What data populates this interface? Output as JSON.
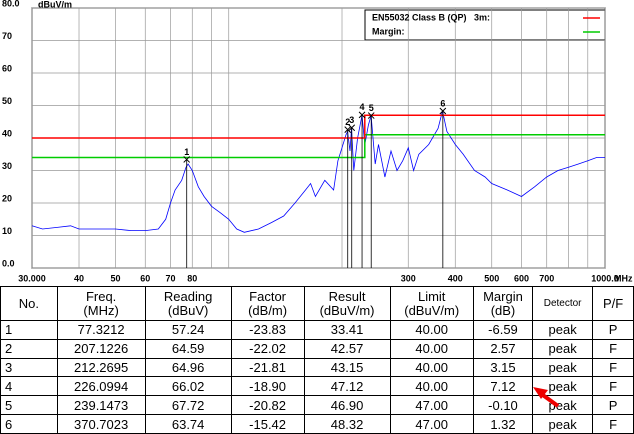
{
  "chart_data": {
    "type": "line",
    "ylabel": "dBuV/m",
    "xlabel": "MHz",
    "xlog": true,
    "grid": true,
    "xlim": [
      30,
      1000
    ],
    "ylim": [
      0,
      80
    ],
    "yticks": [
      {
        "value": 0,
        "label": "0.0"
      },
      10,
      20,
      30,
      40,
      50,
      60,
      70,
      {
        "value": 80,
        "label": "80.0"
      }
    ],
    "xticks": [
      {
        "value": 30,
        "label": "30.000"
      },
      {
        "value": 40,
        "label": "40"
      },
      {
        "value": 50,
        "label": "50"
      },
      {
        "value": 60,
        "label": "60"
      },
      {
        "value": 70,
        "label": "70"
      },
      {
        "value": 80,
        "label": "80"
      },
      {
        "value": 90,
        "label": null
      },
      {
        "value": 100,
        "label": null
      },
      {
        "value": 200,
        "label": null
      },
      {
        "value": 300,
        "label": "300"
      },
      {
        "value": 400,
        "label": "400"
      },
      {
        "value": 500,
        "label": "500"
      },
      {
        "value": 600,
        "label": "600"
      },
      {
        "value": 700,
        "label": "700"
      },
      {
        "value": 800,
        "label": null
      },
      {
        "value": 900,
        "label": null
      },
      {
        "value": 1000,
        "label": "1000.0"
      }
    ],
    "series": [
      {
        "name": "EN55032 Class B (QP)   3m:",
        "color": "#ff0000",
        "x": [
          30,
          230,
          230,
          1000
        ],
        "values": [
          40,
          40,
          47,
          47
        ]
      },
      {
        "name": "Margin:",
        "color": "#00cc00",
        "x": [
          30,
          230,
          230,
          1000
        ],
        "values": [
          34,
          34,
          41,
          41
        ]
      },
      {
        "color": "#0000ff",
        "x": [
          30,
          32,
          35,
          38,
          40,
          45,
          50,
          55,
          60,
          65,
          68,
          70,
          72,
          75,
          77,
          78,
          80,
          83,
          86,
          90,
          95,
          100,
          105,
          110,
          120,
          130,
          140,
          150,
          160,
          165,
          170,
          180,
          190,
          195,
          200,
          205,
          207,
          210,
          212,
          215,
          220,
          226,
          230,
          235,
          239,
          245,
          250,
          260,
          270,
          280,
          290,
          300,
          310,
          320,
          340,
          360,
          370,
          380,
          400,
          420,
          450,
          480,
          500,
          550,
          600,
          650,
          700,
          750,
          800,
          850,
          900,
          950,
          1000
        ],
        "values": [
          13,
          12,
          12.5,
          13,
          12,
          12,
          12,
          11.5,
          11.5,
          12,
          15,
          20,
          24,
          27,
          31,
          32,
          30,
          25,
          22,
          19,
          17,
          15,
          12,
          11,
          12,
          14,
          16,
          20,
          24,
          26,
          22,
          27,
          24,
          33,
          37,
          41,
          42,
          36,
          43,
          30,
          40,
          47,
          38,
          44,
          46.9,
          32,
          38,
          28,
          36,
          30,
          33,
          37,
          30,
          35,
          38,
          43,
          48.3,
          42,
          38,
          35,
          30,
          28,
          26,
          24,
          22,
          25,
          28,
          30,
          31,
          32,
          33,
          34,
          34
        ]
      }
    ],
    "markers": {
      "labels": [
        "1",
        "2",
        "3",
        "4",
        "5",
        "6"
      ],
      "x": [
        77.3212,
        207.1226,
        212.2695,
        226.0994,
        239.1473,
        370.7023
      ],
      "values": [
        33.41,
        42.57,
        43.15,
        47.12,
        46.9,
        48.32
      ]
    }
  },
  "table": {
    "header": [
      "No.",
      "Freq.\n(MHz)",
      "Reading\n(dBuV)",
      "Factor\n(dB/m)",
      "Result\n(dBuV/m)",
      "Limit\n(dBuV/m)",
      "Margin\n(dB)",
      "Detector",
      "P/F"
    ],
    "rows": [
      [
        "1",
        "77.3212",
        "57.24",
        "-23.83",
        "33.41",
        "40.00",
        "-6.59",
        "peak",
        "P"
      ],
      [
        "2",
        "207.1226",
        "64.59",
        "-22.02",
        "42.57",
        "40.00",
        "2.57",
        "peak",
        "F"
      ],
      [
        "3",
        "212.2695",
        "64.96",
        "-21.81",
        "43.15",
        "40.00",
        "3.15",
        "peak",
        "F"
      ],
      [
        "4",
        "226.0994",
        "66.02",
        "-18.90",
        "47.12",
        "40.00",
        "7.12",
        "peak",
        "F"
      ],
      [
        "5",
        "239.1473",
        "67.72",
        "-20.82",
        "46.90",
        "47.00",
        "-0.10",
        "peak",
        "P"
      ],
      [
        "6",
        "370.7023",
        "63.74",
        "-15.42",
        "48.32",
        "47.00",
        "1.32",
        "peak",
        "F"
      ]
    ]
  }
}
